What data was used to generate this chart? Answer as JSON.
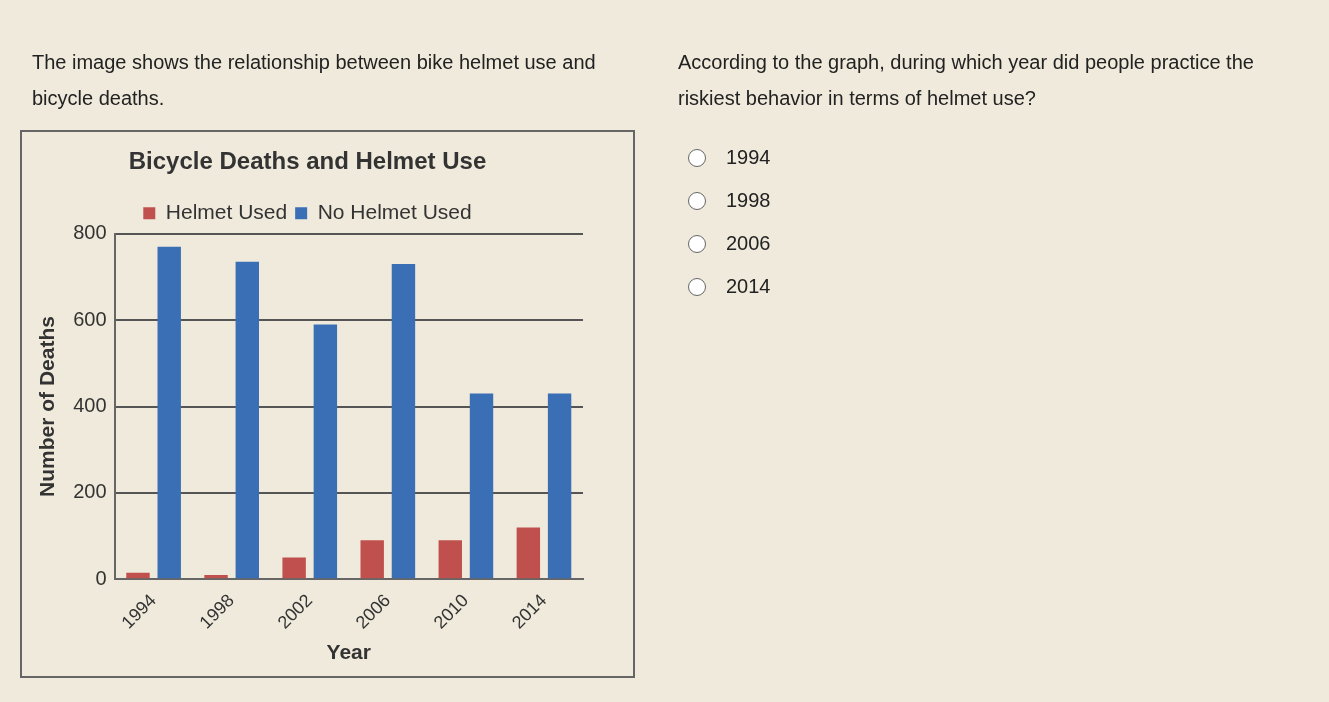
{
  "chart_data": {
    "type": "bar",
    "title": "Bicycle Deaths and Helmet Use",
    "xlabel": "Year",
    "ylabel": "Number of Deaths",
    "categories": [
      "1994",
      "1998",
      "2002",
      "2006",
      "2010",
      "2014"
    ],
    "series": [
      {
        "name": "Helmet Used",
        "color": "#c0504d",
        "values": [
          15,
          10,
          50,
          90,
          90,
          120
        ]
      },
      {
        "name": "No Helmet Used",
        "color": "#3a6fb5",
        "values": [
          770,
          735,
          590,
          730,
          430,
          430
        ]
      }
    ],
    "ylim": [
      0,
      800
    ],
    "yticks": [
      0,
      200,
      400,
      600,
      800
    ],
    "grid": "y",
    "legend": "top",
    "annotations": [
      "The image shows the relationship between bike helmet use and bicycle deaths.",
      "According to the graph, during which year did people practice the riskiest behavior in terms of helmet use?",
      "1994",
      "1998",
      "2006",
      "2014"
    ]
  }
}
